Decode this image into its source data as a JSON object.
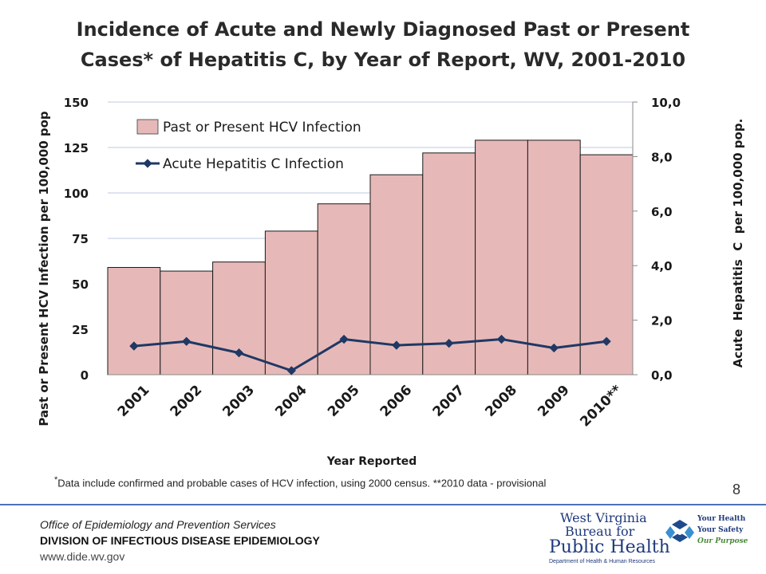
{
  "title": {
    "line1": "Incidence of Acute and Newly Diagnosed Past or Present",
    "line2": "Cases* of Hepatitis C, by Year of Report, WV, 2001-2010"
  },
  "footnote": {
    "marker": "*",
    "text": "Data include confirmed and probable cases of HCV infection, using 2000 census. **2010 data - provisional"
  },
  "page_number": "8",
  "footer": {
    "office": "Office of Epidemiology and Prevention Services",
    "division": "DIVISION OF INFECTIOUS DISEASE EPIDEMIOLOGY",
    "website": "www.dide.wv.gov"
  },
  "logo": {
    "line1": "West Virginia",
    "line2": "Bureau for",
    "line3": "Public Health",
    "line4": "Department of Health & Human Resources",
    "tag1": "Your Health",
    "tag2": "Your Safety",
    "tag3": "Our Purpose"
  },
  "colors": {
    "bar_fill": "#e6b9b8",
    "line": "#1f3864",
    "gridline": "#bcc8e2"
  },
  "chart_data": {
    "type": "bar",
    "title": "Incidence of Acute and Newly Diagnosed Past or Present Cases* of Hepatitis C, by Year of Report, WV, 2001-2010",
    "categories": [
      "2001",
      "2002",
      "2003",
      "2004",
      "2005",
      "2006",
      "2007",
      "2008",
      "2009",
      "2010**"
    ],
    "xlabel": "Year Reported",
    "ylabel": "Past or Present HCV Infection per 100,000 pop",
    "y2label": "Acute  Hepatitis  C  per 100,000 pop.",
    "ylim": [
      0,
      150
    ],
    "y2lim": [
      0,
      10
    ],
    "y_ticks": [
      "0",
      "25",
      "50",
      "75",
      "100",
      "125",
      "150"
    ],
    "y2_ticks": [
      "0,0",
      "2,0",
      "4,0",
      "6,0",
      "8,0",
      "10,0"
    ],
    "grid": true,
    "legend_position": "top-left",
    "series": [
      {
        "name": "Past or Present HCV Infection",
        "type": "bar",
        "axis": "left",
        "values": [
          59,
          57,
          62,
          79,
          94,
          110,
          122,
          129,
          129,
          121
        ]
      },
      {
        "name": "Acute Hepatitis C Infection",
        "type": "line",
        "axis": "right",
        "values": [
          1.05,
          1.22,
          0.8,
          0.15,
          1.3,
          1.08,
          1.15,
          1.3,
          0.98,
          1.22
        ]
      }
    ]
  }
}
